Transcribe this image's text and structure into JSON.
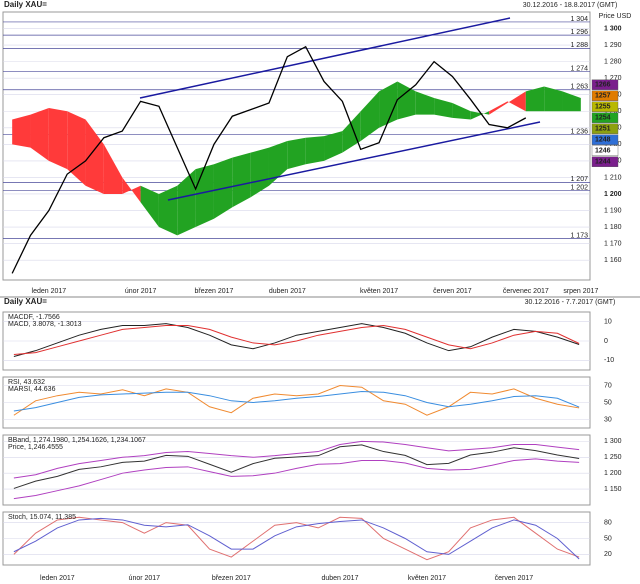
{
  "chart_data": [
    {
      "type": "line",
      "title": "Daily XAU=",
      "subtitle": "30.12.2016 - 18.8.2017 (GMT)",
      "y_label": "Price USD",
      "categories": [
        null,
        null,
        "leden 2017",
        null,
        null,
        null,
        null,
        "únor 2017",
        null,
        null,
        null,
        "březen 2017",
        null,
        null,
        null,
        "duben 2017",
        null,
        null,
        null,
        null,
        "květen 2017",
        null,
        null,
        null,
        "červen 2017",
        null,
        null,
        null,
        "červenec 2017",
        null,
        null,
        "srpen 2017"
      ],
      "series": [
        {
          "color": "#000000",
          "values": [
            1152,
            1175,
            1190,
            1212,
            1220,
            1234,
            1238,
            1256,
            1253,
            1228,
            1203,
            1230,
            1247,
            1251,
            1255,
            1283,
            1289,
            1268,
            1256,
            1227,
            1231,
            1257,
            1266,
            1280,
            1271,
            1257,
            1242,
            1240,
            1246,
            null,
            null,
            null
          ]
        }
      ],
      "cloud": {
        "colors": [
          "#22a322",
          "#ff3a3a"
        ],
        "span_a": [
          1230,
          1228,
          1220,
          1215,
          1205,
          1200,
          1200,
          1205,
          1200,
          1205,
          1215,
          1218,
          1222,
          1225,
          1228,
          1232,
          1234,
          1235,
          1238,
          1250,
          1262,
          1268,
          1262,
          1258,
          1255,
          1250,
          1248,
          1255,
          1262,
          1265,
          1262,
          1258
        ],
        "span_b": [
          1245,
          1248,
          1252,
          1250,
          1245,
          1230,
          1210,
          1195,
          1180,
          1175,
          1180,
          1185,
          1192,
          1198,
          1205,
          1215,
          1218,
          1220,
          1225,
          1232,
          1240,
          1245,
          1248,
          1248,
          1246,
          1245,
          1250,
          1256,
          1250,
          1250,
          1250,
          1250
        ]
      },
      "ylim": [
        1148,
        1310
      ],
      "yticks": [
        {
          "value": 1160,
          "label": "1 160"
        },
        {
          "value": 1170,
          "label": "1 170"
        },
        {
          "value": 1180,
          "label": "1 180"
        },
        {
          "value": 1190,
          "label": "1 190"
        },
        {
          "value": 1200,
          "label": "1 200"
        },
        {
          "value": 1210,
          "label": "1 210"
        },
        {
          "value": 1220,
          "label": "1 220"
        },
        {
          "value": 1230,
          "label": "1 230"
        },
        {
          "value": 1240,
          "label": "1 240"
        },
        {
          "value": 1250,
          "label": "1 250"
        },
        {
          "value": 1260,
          "label": "1 260"
        },
        {
          "value": 1270,
          "label": "1 270"
        },
        {
          "value": 1280,
          "label": "1 280"
        },
        {
          "value": 1290,
          "label": "1 290"
        },
        {
          "value": 1300,
          "label": "1 300"
        }
      ],
      "levels": [
        {
          "value": 1304,
          "label": "1 304"
        },
        {
          "value": 1296,
          "label": "1 296"
        },
        {
          "value": 1288,
          "label": "1 288"
        },
        {
          "value": 1274,
          "label": "1 274"
        },
        {
          "value": 1263,
          "label": "1 263"
        },
        {
          "value": 1236,
          "label": "1 236"
        },
        {
          "value": 1207,
          "label": "1 207"
        },
        {
          "value": 1202,
          "label": "1 202"
        },
        {
          "value": 1173,
          "label": "1 173"
        }
      ],
      "price_tags": [
        {
          "value": 1266,
          "color": "#7a1f8c"
        },
        {
          "value": 1257,
          "color": "#e07b00"
        },
        {
          "value": 1255,
          "color": "#b8b800"
        },
        {
          "value": 1254,
          "color": "#22a322"
        },
        {
          "value": 1251,
          "color": "#8da010"
        },
        {
          "value": 1248,
          "color": "#2f6fd6"
        },
        {
          "value": 1246,
          "color": "#ffffff"
        },
        {
          "value": 1244,
          "color": "#7a1f8c"
        }
      ]
    },
    {
      "type": "line",
      "title": "Daily XAU=",
      "subtitle": "30.12.2016 - 7.7.2017 (GMT)",
      "series": [
        {
          "name": "MACDF, -1.7566",
          "color": "#222222",
          "values": [
            -8,
            -5,
            -1,
            3,
            6,
            8,
            8,
            9,
            7,
            3,
            -2,
            -4,
            -1,
            3,
            5,
            7,
            9,
            7,
            4,
            -1,
            -5,
            -3,
            2,
            6,
            5,
            2,
            -1.8
          ]
        },
        {
          "name": "MACD, 3.8078, -1.3013",
          "color": "#e03030",
          "values": [
            -7,
            -6,
            -3,
            0,
            3,
            6,
            7,
            8,
            8,
            6,
            2,
            -1,
            -2,
            0,
            3,
            5,
            7,
            8,
            6,
            2,
            -2,
            -4,
            -1,
            3,
            5,
            4,
            -1.3
          ]
        }
      ],
      "ylim": [
        -15,
        15
      ],
      "yticks": [
        -10,
        0,
        10
      ]
    },
    {
      "type": "line",
      "series": [
        {
          "name": "RSI, 43.632",
          "color": "#f08a30",
          "values": [
            35,
            52,
            58,
            62,
            60,
            65,
            58,
            66,
            62,
            45,
            38,
            55,
            60,
            58,
            60,
            70,
            68,
            52,
            48,
            35,
            45,
            62,
            60,
            66,
            55,
            48,
            43.6
          ]
        },
        {
          "name": "MARSI, 44.636",
          "color": "#3a8ee0",
          "values": [
            40,
            44,
            50,
            56,
            59,
            60,
            61,
            62,
            62,
            58,
            52,
            50,
            52,
            55,
            57,
            60,
            63,
            62,
            58,
            50,
            45,
            48,
            52,
            57,
            58,
            55,
            44.6
          ]
        }
      ],
      "ylim": [
        20,
        80
      ],
      "yticks": [
        30,
        50,
        70
      ]
    },
    {
      "type": "line",
      "series": [
        {
          "name": "BBand, 1,274.1980, 1,254.1626, 1,234.1067",
          "color": "#b040c0",
          "values": [
            1185,
            1195,
            1215,
            1230,
            1240,
            1250,
            1255,
            1265,
            1268,
            1262,
            1255,
            1250,
            1255,
            1262,
            1268,
            1290,
            1300,
            1298,
            1290,
            1280,
            1270,
            1275,
            1280,
            1290,
            1290,
            1282,
            1274
          ]
        },
        {
          "name": "Price, 1,246.4555",
          "color": "#333333",
          "values": [
            1152,
            1175,
            1190,
            1212,
            1220,
            1234,
            1238,
            1256,
            1253,
            1228,
            1203,
            1230,
            1247,
            1251,
            1255,
            1283,
            1289,
            1268,
            1256,
            1227,
            1231,
            1257,
            1266,
            1280,
            1271,
            1257,
            1246
          ]
        },
        {
          "color": "#b040c0",
          "values": [
            1120,
            1130,
            1145,
            1160,
            1180,
            1200,
            1210,
            1218,
            1220,
            1205,
            1190,
            1192,
            1200,
            1215,
            1228,
            1230,
            1240,
            1240,
            1232,
            1215,
            1210,
            1212,
            1225,
            1240,
            1245,
            1238,
            1234
          ]
        }
      ],
      "ylim": [
        1100,
        1320
      ],
      "yticks": [
        {
          "value": 1150,
          "label": "1 150"
        },
        {
          "value": 1200,
          "label": "1 200"
        },
        {
          "value": 1250,
          "label": "1 250"
        },
        {
          "value": 1300,
          "label": "1 300"
        }
      ]
    },
    {
      "type": "line",
      "categories": [
        null,
        null,
        "leden 2017",
        null,
        null,
        null,
        "únor 2017",
        null,
        null,
        null,
        "březen 2017",
        null,
        null,
        null,
        null,
        "duben 2017",
        null,
        null,
        null,
        "květen 2017",
        null,
        null,
        null,
        "červen 2017",
        null,
        null,
        null
      ],
      "series": [
        {
          "name": "Stoch, 15.074, 11.385",
          "color": "#e07070",
          "values": [
            20,
            60,
            85,
            90,
            85,
            80,
            60,
            80,
            75,
            30,
            15,
            45,
            75,
            80,
            70,
            90,
            88,
            50,
            30,
            10,
            25,
            70,
            85,
            90,
            60,
            30,
            15
          ]
        },
        {
          "color": "#6060d0",
          "values": [
            25,
            45,
            70,
            85,
            88,
            85,
            75,
            72,
            76,
            55,
            30,
            30,
            55,
            72,
            78,
            82,
            85,
            70,
            50,
            25,
            20,
            45,
            70,
            85,
            75,
            50,
            11.4
          ]
        }
      ],
      "ylim": [
        0,
        100
      ],
      "yticks": [
        20,
        50,
        80
      ]
    }
  ]
}
